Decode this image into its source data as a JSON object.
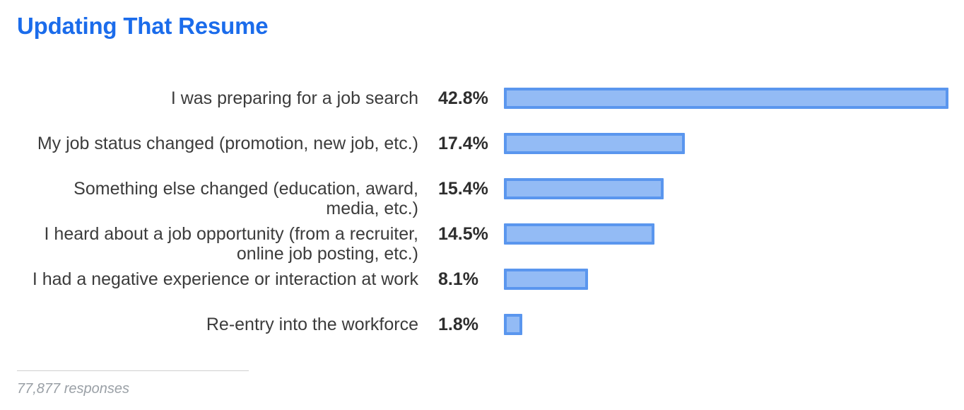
{
  "title": "Updating That Resume",
  "footer": {
    "responses": "77,877 responses"
  },
  "colors": {
    "title": "#1b6ceb",
    "bar_fill": "#93bbf5",
    "bar_border": "#5a96ee",
    "label_text": "#3c3c3c",
    "value_text": "#2e2e2e",
    "footer_text": "#9aa0a6",
    "divider": "#cfcfcf"
  },
  "chart_data": {
    "type": "bar",
    "orientation": "horizontal",
    "title": "Updating That Resume",
    "categories": [
      "I was preparing for a job search",
      "My job status changed (promotion, new job, etc.)",
      "Something else changed (education, award, media, etc.)",
      "I heard about a job opportunity (from a recruiter, online job posting, etc.)",
      "I had a negative experience or interaction at work",
      "Re-entry into the workforce"
    ],
    "values": [
      42.8,
      17.4,
      15.4,
      14.5,
      8.1,
      1.8
    ],
    "value_labels": [
      "42.8%",
      "17.4%",
      "15.4%",
      "14.5%",
      "8.1%",
      "1.8%"
    ],
    "xlabel": "",
    "ylabel": "",
    "xlim": [
      0,
      42.8
    ],
    "grid": false,
    "legend": false,
    "note": "77,877 responses"
  }
}
